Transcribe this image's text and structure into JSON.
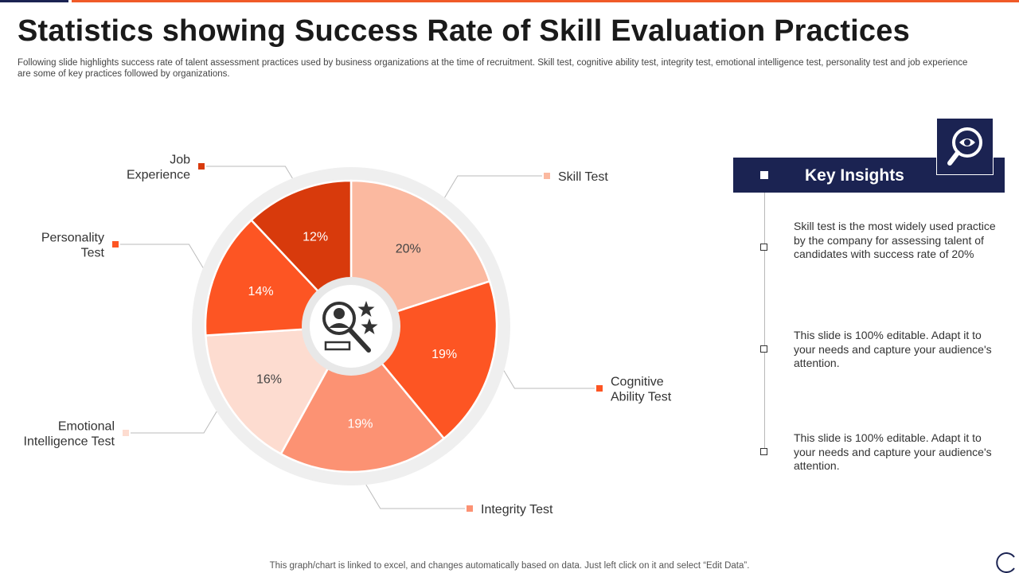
{
  "title": "Statistics showing Success Rate of Skill Evaluation Practices",
  "subtitle": "Following slide highlights success rate of talent assessment practices used by business organizations at the time of recruitment. Skill  test, cognitive ability test, integrity test, emotional intelligence test, personality test and job experience are some of key  practices followed by organizations.",
  "colors": {
    "navy": "#1b2352",
    "accent": "#f05a28"
  },
  "chart_data": {
    "type": "pie",
    "style": "donut-with-center-icon",
    "center_icon": "candidate-search-icon",
    "slices": [
      {
        "label": [
          "Skill Test"
        ],
        "value": 20,
        "display": "20%",
        "color": "#fbb9a0",
        "text_color": "#444444",
        "label_side": "right"
      },
      {
        "label": [
          "Cognitive",
          "Ability Test"
        ],
        "value": 19,
        "display": "19%",
        "color": "#fd5523",
        "text_color": "#ffffff",
        "label_side": "right"
      },
      {
        "label": [
          "Integrity  Test"
        ],
        "value": 19,
        "display": "19%",
        "color": "#fc9273",
        "text_color": "#ffffff",
        "label_side": "right"
      },
      {
        "label": [
          "Emotional",
          "Intelligence  Test"
        ],
        "value": 16,
        "display": "16%",
        "color": "#fddcd0",
        "text_color": "#444444",
        "label_side": "left"
      },
      {
        "label": [
          "Personality",
          "Test"
        ],
        "value": 14,
        "display": "14%",
        "color": "#fd5523",
        "text_color": "#ffffff",
        "label_side": "left"
      },
      {
        "label": [
          "Job",
          "Experience"
        ],
        "value": 12,
        "display": "12%",
        "color": "#d83a0c",
        "text_color": "#ffffff",
        "label_side": "left"
      }
    ]
  },
  "insights": {
    "header": "Key Insights",
    "icon": "magnifier-eye-icon",
    "items": [
      "Skill test is the most widely used practice by the company for assessing talent of candidates with success rate of 20%",
      "This slide is 100% editable.  Adapt it to your needs and capture your audience's attention.",
      "This slide is 100% editable.  Adapt it to your needs and capture your audience's attention."
    ]
  },
  "footnote": "This graph/chart is linked to excel,  and changes automatically based on data. Just left click on it and select “Edit Data”."
}
